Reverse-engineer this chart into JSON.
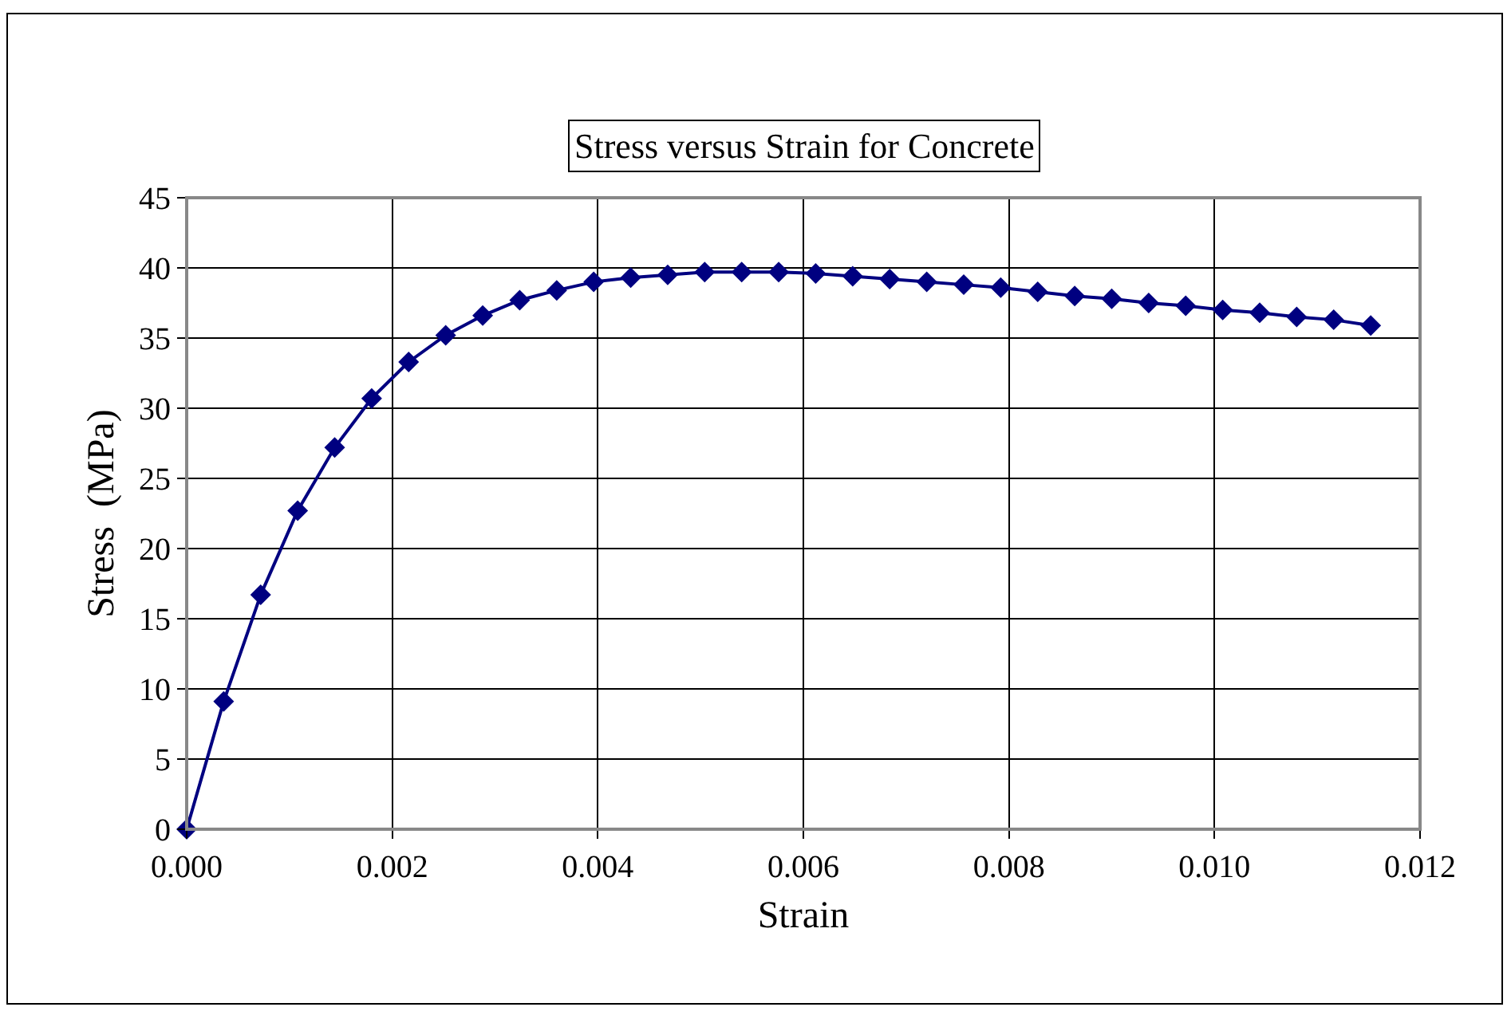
{
  "chart_data": {
    "type": "line",
    "title": "Stress versus Strain for Concrete",
    "xlabel": "Strain",
    "ylabel": "Stress  (MPa)",
    "x": [
      0,
      0.00036,
      0.00072,
      0.00108,
      0.00144,
      0.0018,
      0.00216,
      0.00252,
      0.00288,
      0.00324,
      0.0036,
      0.00396,
      0.00432,
      0.00468,
      0.00504,
      0.0054,
      0.00576,
      0.00612,
      0.00648,
      0.00684,
      0.0072,
      0.00756,
      0.00792,
      0.00828,
      0.00864,
      0.009,
      0.00936,
      0.00972,
      0.01008,
      0.01044,
      0.0108,
      0.01116,
      0.01152
    ],
    "series": [
      {
        "color": "#000080",
        "values": [
          0,
          9.1,
          16.7,
          22.7,
          27.2,
          30.7,
          33.3,
          35.2,
          36.6,
          37.7,
          38.4,
          39.0,
          39.3,
          39.5,
          39.7,
          39.7,
          39.7,
          39.6,
          39.4,
          39.2,
          39.0,
          38.8,
          38.6,
          38.3,
          38.0,
          37.8,
          37.5,
          37.3,
          37.0,
          36.8,
          36.5,
          36.3,
          35.9
        ]
      }
    ],
    "xlim": [
      0,
      0.012
    ],
    "xticks": [
      {
        "value": 0,
        "label": "0.000"
      },
      0.002,
      0.004,
      0.006,
      0.008,
      {
        "value": 0.01,
        "label": "0.010"
      },
      0.012
    ],
    "ylim": [
      0,
      45
    ],
    "yticks": [
      0,
      5,
      10,
      15,
      20,
      25,
      30,
      35,
      40,
      45
    ],
    "grid": true,
    "marker": "diamond",
    "line_style": "solid"
  }
}
